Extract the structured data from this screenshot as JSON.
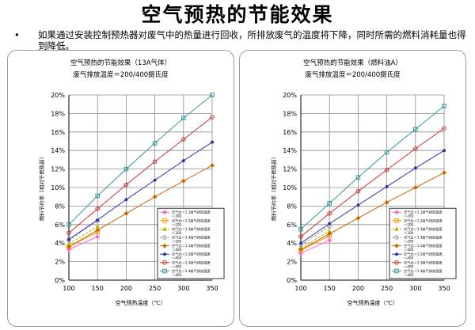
{
  "slide": {
    "title": "空气预热的节能效果",
    "bullet_symbol": "•",
    "bullet_text": "如果通过安装控制预热器对废气中的热量进行回收，所排放废气的温度将下降，同时所需的燃料消耗量也得到降低。"
  },
  "series_colors": [
    "#ff66cc",
    "#ff9900",
    "#b5b500",
    "#999999",
    "#cc6600",
    "#3333aa",
    "#cc3333",
    "#339999",
    "#4444ee"
  ],
  "chart_data": [
    {
      "type": "line",
      "title": "空气预热的节能效果（13A气体）",
      "subtitle": "废气排放温度＝200/400摄氏度",
      "xlabel": "空气预热温度（℃）",
      "ylabel": "燃料节约率（相对于预热前）",
      "xlim": [
        100,
        350
      ],
      "ylim": [
        0,
        0.2
      ],
      "xticks": [
        "100",
        "150",
        "200",
        "250",
        "300",
        "350"
      ],
      "yticks": [
        "0%",
        "2%",
        "4%",
        "6%",
        "8%",
        "10%",
        "12%",
        "14%",
        "16%",
        "18%",
        "20%"
      ],
      "grid": true,
      "legend_position": "lower-right",
      "series": [
        {
          "name": "空气比＝1.1废气排放温度 ＝200",
          "x": [
            100,
            150
          ],
          "y": [
            0.033,
            0.047
          ]
        },
        {
          "name": "空气比＝1.2废气排放温度 ＝200",
          "x": [
            100,
            150
          ],
          "y": [
            0.036,
            0.052
          ]
        },
        {
          "name": "空气比＝1.3废气排放温度 ＝200",
          "x": [
            100,
            150
          ],
          "y": [
            0.039,
            0.058
          ]
        },
        {
          "name": "空气比＝1.4废气排放温度 ＝200",
          "x": [
            100,
            150
          ],
          "y": [
            0.043,
            0.064
          ]
        },
        {
          "name": "空气比＝1.1废气排放温度 ＝400",
          "x": [
            100,
            150,
            200,
            250,
            300,
            350
          ],
          "y": [
            0.036,
            0.054,
            0.072,
            0.09,
            0.107,
            0.124
          ]
        },
        {
          "name": "空气比＝1.2废气排放温度 ＝400",
          "x": [
            100,
            150,
            200,
            250,
            300,
            350
          ],
          "y": [
            0.044,
            0.065,
            0.087,
            0.108,
            0.129,
            0.149
          ]
        },
        {
          "name": "空气比＝1.3废气排放温度 ＝400",
          "x": [
            100,
            150,
            200,
            250,
            300,
            350
          ],
          "y": [
            0.051,
            0.077,
            0.103,
            0.128,
            0.152,
            0.176
          ]
        },
        {
          "name": "空气比＝1.4废气排放温度 ＝400",
          "x": [
            100,
            150,
            200,
            250,
            300,
            350
          ],
          "y": [
            0.06,
            0.091,
            0.12,
            0.148,
            0.175,
            0.2
          ]
        }
      ]
    },
    {
      "type": "line",
      "title": "空气预热的节能效果（燃料油A）",
      "subtitle": "废气排放温度＝200/400摄氏度",
      "xlabel": "空气预热温度（℃）",
      "ylabel": "燃料节约率（相对于预热前）",
      "xlim": [
        100,
        350
      ],
      "ylim": [
        0,
        0.2
      ],
      "xticks": [
        "100",
        "150",
        "200",
        "250",
        "300",
        "350"
      ],
      "yticks": [
        "0%",
        "2%",
        "4%",
        "6%",
        "8%",
        "10%",
        "12%",
        "14%",
        "16%",
        "18%",
        "20%"
      ],
      "grid": true,
      "legend_position": "lower-right",
      "series": [
        {
          "name": "空气比＝1.1废气排放温度 ＝200",
          "x": [
            100,
            150
          ],
          "y": [
            0.029,
            0.043
          ]
        },
        {
          "name": "空气比＝1.2废气排放温度 ＝200",
          "x": [
            100,
            150
          ],
          "y": [
            0.032,
            0.048
          ]
        },
        {
          "name": "空气比＝1.3废气排放温度 ＝200",
          "x": [
            100,
            150
          ],
          "y": [
            0.035,
            0.053
          ]
        },
        {
          "name": "空气比＝1.4废气排放温度 ＝200",
          "x": [
            100,
            150
          ],
          "y": [
            0.038,
            0.058
          ]
        },
        {
          "name": "空气比＝1.1废气排放温度 ＝400",
          "x": [
            100,
            150,
            200,
            250,
            300,
            350
          ],
          "y": [
            0.033,
            0.05,
            0.067,
            0.084,
            0.1,
            0.116
          ]
        },
        {
          "name": "空气比＝1.2废气排放温度 ＝400",
          "x": [
            100,
            150,
            200,
            250,
            300,
            350
          ],
          "y": [
            0.04,
            0.061,
            0.081,
            0.101,
            0.121,
            0.14
          ]
        },
        {
          "name": "空气比＝1.3废气排放温度 ＝400",
          "x": [
            100,
            150,
            200,
            250,
            300,
            350
          ],
          "y": [
            0.047,
            0.072,
            0.096,
            0.119,
            0.142,
            0.164
          ]
        },
        {
          "name": "空气比＝1.4废气排放温度 ＝400",
          "x": [
            100,
            150,
            200,
            250,
            300,
            350
          ],
          "y": [
            0.055,
            0.083,
            0.111,
            0.138,
            0.163,
            0.188
          ]
        }
      ]
    }
  ]
}
